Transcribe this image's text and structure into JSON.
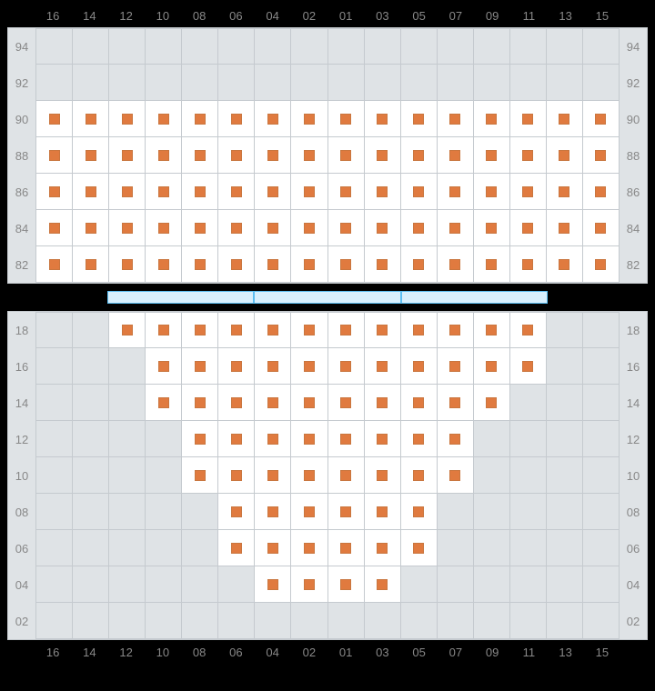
{
  "columns": [
    "16",
    "14",
    "12",
    "10",
    "08",
    "06",
    "04",
    "02",
    "01",
    "03",
    "05",
    "07",
    "09",
    "11",
    "13",
    "15"
  ],
  "upper": {
    "row_labels": [
      "94",
      "92",
      "90",
      "88",
      "86",
      "84",
      "82"
    ],
    "rows": [
      {
        "seats": [
          0,
          0,
          0,
          0,
          0,
          0,
          0,
          0,
          0,
          0,
          0,
          0,
          0,
          0,
          0,
          0
        ]
      },
      {
        "seats": [
          0,
          0,
          0,
          0,
          0,
          0,
          0,
          0,
          0,
          0,
          0,
          0,
          0,
          0,
          0,
          0
        ]
      },
      {
        "seats": [
          1,
          1,
          1,
          1,
          1,
          1,
          1,
          1,
          1,
          1,
          1,
          1,
          1,
          1,
          1,
          1
        ]
      },
      {
        "seats": [
          1,
          1,
          1,
          1,
          1,
          1,
          1,
          1,
          1,
          1,
          1,
          1,
          1,
          1,
          1,
          1
        ]
      },
      {
        "seats": [
          1,
          1,
          1,
          1,
          1,
          1,
          1,
          1,
          1,
          1,
          1,
          1,
          1,
          1,
          1,
          1
        ]
      },
      {
        "seats": [
          1,
          1,
          1,
          1,
          1,
          1,
          1,
          1,
          1,
          1,
          1,
          1,
          1,
          1,
          1,
          1
        ]
      },
      {
        "seats": [
          1,
          1,
          1,
          1,
          1,
          1,
          1,
          1,
          1,
          1,
          1,
          1,
          1,
          1,
          1,
          1
        ]
      }
    ]
  },
  "divider": {
    "blank_left_cols": 2,
    "segments": 3,
    "seg_span_cols": 4,
    "blank_right_cols": 2,
    "color_fill": "#d8effd",
    "color_border": "#5cbef2"
  },
  "lower": {
    "row_labels": [
      "18",
      "16",
      "14",
      "12",
      "10",
      "08",
      "06",
      "04",
      "02"
    ],
    "rows": [
      {
        "seats": [
          0,
          0,
          1,
          1,
          1,
          1,
          1,
          1,
          1,
          1,
          1,
          1,
          1,
          1,
          0,
          0
        ]
      },
      {
        "seats": [
          0,
          0,
          0,
          1,
          1,
          1,
          1,
          1,
          1,
          1,
          1,
          1,
          1,
          1,
          0,
          0
        ]
      },
      {
        "seats": [
          0,
          0,
          0,
          1,
          1,
          1,
          1,
          1,
          1,
          1,
          1,
          1,
          1,
          0,
          0,
          0
        ]
      },
      {
        "seats": [
          0,
          0,
          0,
          0,
          1,
          1,
          1,
          1,
          1,
          1,
          1,
          1,
          0,
          0,
          0,
          0
        ]
      },
      {
        "seats": [
          0,
          0,
          0,
          0,
          1,
          1,
          1,
          1,
          1,
          1,
          1,
          1,
          0,
          0,
          0,
          0
        ]
      },
      {
        "seats": [
          0,
          0,
          0,
          0,
          0,
          1,
          1,
          1,
          1,
          1,
          1,
          0,
          0,
          0,
          0,
          0
        ]
      },
      {
        "seats": [
          0,
          0,
          0,
          0,
          0,
          1,
          1,
          1,
          1,
          1,
          1,
          0,
          0,
          0,
          0,
          0
        ]
      },
      {
        "seats": [
          0,
          0,
          0,
          0,
          0,
          0,
          1,
          1,
          1,
          1,
          0,
          0,
          0,
          0,
          0,
          0
        ]
      },
      {
        "seats": [
          0,
          0,
          0,
          0,
          0,
          0,
          0,
          0,
          0,
          0,
          0,
          0,
          0,
          0,
          0,
          0
        ]
      }
    ]
  },
  "colors": {
    "seat_dot": "#e07a3f",
    "seat_dot_border": "#c9763f",
    "grid_bg": "#dfe3e6",
    "grid_line": "#c5cacf",
    "seat_bg": "#ffffff",
    "label": "#888888",
    "page_bg": "#000000"
  }
}
